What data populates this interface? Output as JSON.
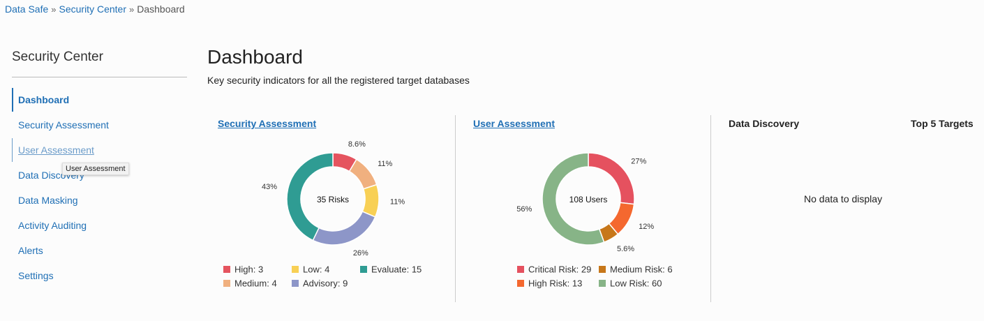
{
  "breadcrumb": {
    "items": [
      "Data Safe",
      "Security Center",
      "Dashboard"
    ],
    "separator": "»"
  },
  "sidebar": {
    "title": "Security Center",
    "items": [
      "Dashboard",
      "Security Assessment",
      "User Assessment",
      "Data Discovery",
      "Data Masking",
      "Activity Auditing",
      "Alerts",
      "Settings"
    ],
    "tooltip": "User Assessment"
  },
  "header": {
    "title": "Dashboard",
    "subtitle": "Key security indicators for all the registered target databases"
  },
  "charts": [
    {
      "type": "donut",
      "title": "Security Assessment",
      "center_label": "35 Risks",
      "categories": [
        "High",
        "Medium",
        "Low",
        "Advisory",
        "Evaluate"
      ],
      "values": [
        3,
        4,
        4,
        9,
        15
      ],
      "legend_labels": [
        "High: 3",
        "Medium: 4",
        "Low: 4",
        "Advisory: 9",
        "Evaluate: 15"
      ],
      "percent_labels": [
        "8.6%",
        "11%",
        "11%",
        "26%",
        "43%"
      ],
      "colors": [
        "#e5545f",
        "#f0b07f",
        "#f8d055",
        "#8d96c8",
        "#2f9c93"
      ]
    },
    {
      "type": "donut",
      "title": "User Assessment",
      "center_label": "108 Users",
      "categories": [
        "Critical Risk",
        "High Risk",
        "Medium Risk",
        "Low Risk"
      ],
      "values": [
        29,
        13,
        6,
        60
      ],
      "legend_labels": [
        "Critical Risk: 29",
        "High Risk: 13",
        "Medium Risk: 6",
        "Low Risk: 60"
      ],
      "percent_labels": [
        "27%",
        "12%",
        "5.6%",
        "56%"
      ],
      "colors": [
        "#e5515f",
        "#f4682f",
        "#c7771a",
        "#87b487"
      ]
    }
  ],
  "discovery": {
    "title": "Data Discovery",
    "targets_title": "Top 5 Targets",
    "empty": "No data to display"
  }
}
